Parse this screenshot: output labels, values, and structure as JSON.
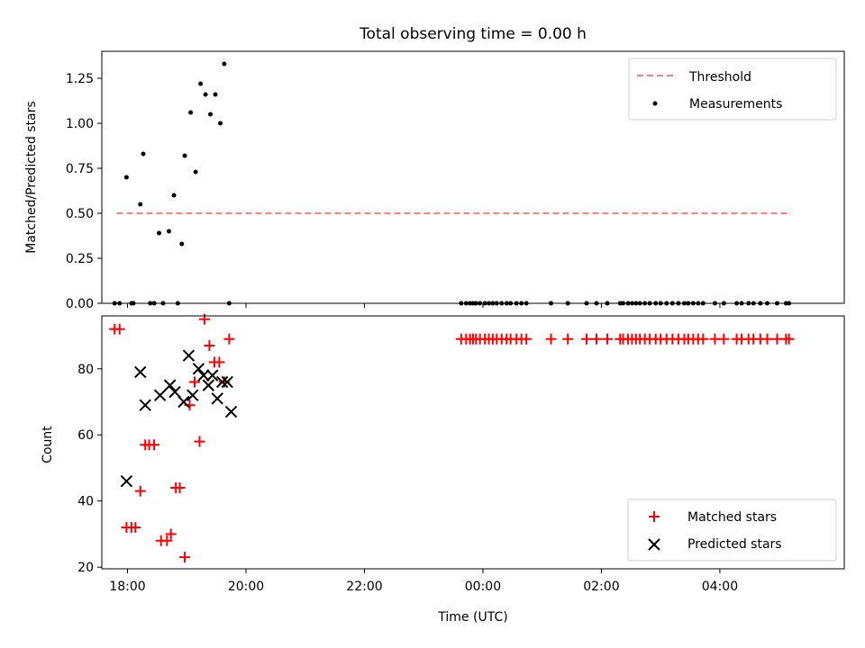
{
  "title": "Total observing time = 0.00 h",
  "colors": {
    "threshold": "#ff0000",
    "measurements": "#000000",
    "matched": "#ff0000",
    "predicted": "#000000"
  },
  "chart_data": [
    {
      "type": "scatter",
      "ylabel": "Matched/Predicted stars",
      "xlim": [
        "17:34",
        "06:06"
      ],
      "ylim": [
        0,
        1.4
      ],
      "yticks": [
        0.0,
        0.25,
        0.5,
        0.75,
        1.0,
        1.25
      ],
      "ytick_labels": [
        "0.00",
        "0.25",
        "0.50",
        "0.75",
        "1.00",
        "1.25"
      ],
      "legend": {
        "position": "top-right",
        "entries": [
          "Threshold",
          "Measurements"
        ]
      },
      "threshold": {
        "name": "Threshold",
        "value": 0.5,
        "x": [
          "17:49",
          "05:12"
        ],
        "style": "dashed"
      },
      "series": [
        {
          "name": "Measurements",
          "x": [
            "17:47",
            "17:52",
            "17:59",
            "18:04",
            "18:06",
            "18:13",
            "18:16",
            "18:23",
            "18:27",
            "18:32",
            "18:36",
            "18:42",
            "18:47",
            "18:51",
            "18:55",
            "18:58",
            "19:04",
            "19:09",
            "19:14",
            "19:19",
            "19:24",
            "19:29",
            "19:34",
            "19:38",
            "19:43",
            "23:38",
            "23:43",
            "23:47",
            "23:50",
            "23:53",
            "23:57",
            "00:02",
            "00:06",
            "00:10",
            "00:14",
            "00:19",
            "00:24",
            "00:28",
            "00:34",
            "00:39",
            "00:44",
            "01:09",
            "01:26",
            "01:45",
            "01:55",
            "02:06",
            "02:19",
            "02:22",
            "02:27",
            "02:31",
            "02:35",
            "02:39",
            "02:44",
            "02:49",
            "02:55",
            "03:00",
            "03:06",
            "03:12",
            "03:18",
            "03:24",
            "03:28",
            "03:33",
            "03:38",
            "03:43",
            "03:55",
            "04:04",
            "04:17",
            "04:22",
            "04:29",
            "04:34",
            "04:41",
            "04:48",
            "04:58",
            "05:07",
            "05:10"
          ],
          "y": [
            0,
            0,
            0.7,
            0,
            0,
            0.55,
            0.83,
            0,
            0,
            0.39,
            0,
            0.4,
            0.6,
            0,
            0.33,
            0.82,
            1.06,
            0.73,
            1.22,
            1.16,
            1.05,
            1.16,
            1.0,
            1.33,
            0,
            0,
            0,
            0,
            0,
            0,
            0,
            0,
            0,
            0,
            0,
            0,
            0,
            0,
            0,
            0,
            0,
            0,
            0,
            0,
            0,
            0,
            0,
            0,
            0,
            0,
            0,
            0,
            0,
            0,
            0,
            0,
            0,
            0,
            0,
            0,
            0,
            0,
            0,
            0,
            0,
            0,
            0,
            0,
            0,
            0,
            0,
            0,
            0,
            0,
            0
          ]
        }
      ]
    },
    {
      "type": "scatter",
      "xlabel": "Time (UTC)",
      "ylabel": "Count",
      "xlim": [
        "17:34",
        "06:06"
      ],
      "ylim": [
        19.5,
        96
      ],
      "yticks": [
        20,
        40,
        60,
        80
      ],
      "xticks": [
        "18:00",
        "20:00",
        "22:00",
        "00:00",
        "02:00",
        "04:00"
      ],
      "legend": {
        "position": "bottom-right",
        "entries": [
          "Matched stars",
          "Predicted stars"
        ]
      },
      "series": [
        {
          "name": "Matched stars",
          "marker": "plus",
          "x": [
            "17:47",
            "17:52",
            "17:59",
            "18:04",
            "18:08",
            "18:13",
            "18:18",
            "18:22",
            "18:27",
            "18:34",
            "18:40",
            "18:44",
            "18:49",
            "18:53",
            "18:58",
            "19:03",
            "19:08",
            "19:13",
            "19:18",
            "19:23",
            "19:28",
            "19:33",
            "19:38",
            "19:43",
            "23:38",
            "23:43",
            "23:47",
            "23:50",
            "23:53",
            "23:57",
            "00:02",
            "00:06",
            "00:10",
            "00:14",
            "00:19",
            "00:24",
            "00:28",
            "00:34",
            "00:39",
            "00:44",
            "01:09",
            "01:26",
            "01:45",
            "01:55",
            "02:06",
            "02:19",
            "02:22",
            "02:27",
            "02:31",
            "02:35",
            "02:39",
            "02:44",
            "02:49",
            "02:55",
            "03:00",
            "03:06",
            "03:12",
            "03:18",
            "03:24",
            "03:28",
            "03:33",
            "03:38",
            "03:43",
            "03:55",
            "04:04",
            "04:17",
            "04:22",
            "04:29",
            "04:34",
            "04:41",
            "04:48",
            "04:58",
            "05:07",
            "05:10"
          ],
          "y": [
            92,
            92,
            32,
            32,
            32,
            43,
            57,
            57,
            57,
            28,
            28,
            30,
            44,
            44,
            23,
            69,
            76,
            58,
            95,
            87,
            82,
            82,
            76,
            89,
            89,
            89,
            89,
            89,
            89,
            89,
            89,
            89,
            89,
            89,
            89,
            89,
            89,
            89,
            89,
            89,
            89,
            89,
            89,
            89,
            89,
            89,
            89,
            89,
            89,
            89,
            89,
            89,
            89,
            89,
            89,
            89,
            89,
            89,
            89,
            89,
            89,
            89,
            89,
            89,
            89,
            89,
            89,
            89,
            89,
            89,
            89,
            89,
            89,
            89
          ]
        },
        {
          "name": "Predicted stars",
          "marker": "x",
          "x": [
            "17:59",
            "18:13",
            "18:18",
            "18:33",
            "18:43",
            "18:48",
            "18:57",
            "19:02",
            "19:06",
            "19:12",
            "19:17",
            "19:22",
            "19:26",
            "19:31",
            "19:36",
            "19:41",
            "19:45"
          ],
          "y": [
            46,
            79,
            69,
            72,
            75,
            73,
            70,
            84,
            72,
            80,
            78,
            75,
            78,
            71,
            76,
            76,
            67
          ]
        }
      ]
    }
  ]
}
